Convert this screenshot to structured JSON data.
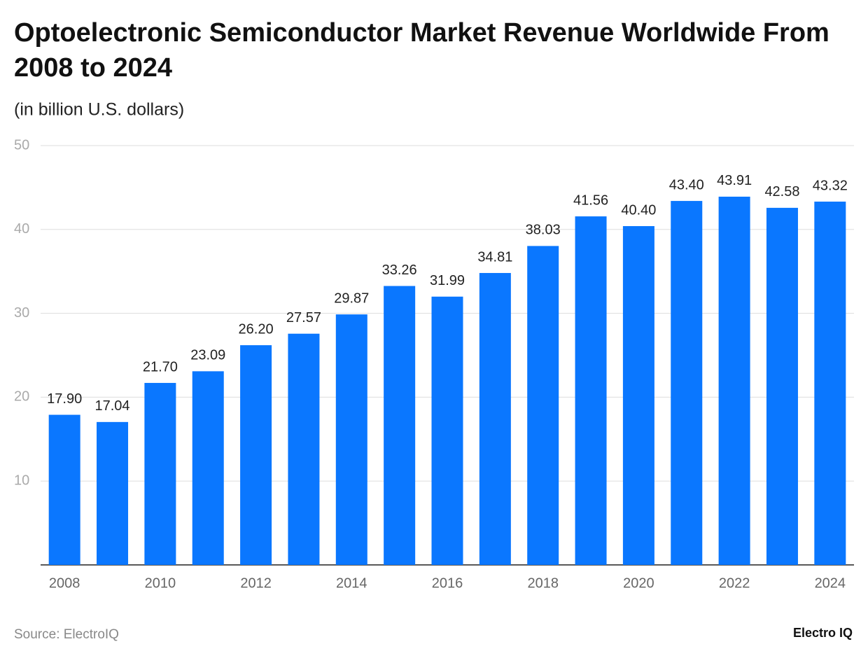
{
  "chart_data": {
    "type": "bar",
    "title": "Optoelectronic Semiconductor Market Revenue Worldwide From 2008 to 2024",
    "subtitle": "(in billion U.S. dollars)",
    "categories": [
      "2008",
      null,
      "2010",
      null,
      "2012",
      null,
      "2014",
      null,
      "2016",
      null,
      "2018",
      null,
      "2020",
      null,
      "2022",
      null,
      "2024"
    ],
    "values": [
      17.9,
      17.04,
      21.7,
      23.09,
      26.2,
      27.57,
      29.87,
      33.26,
      31.99,
      34.81,
      38.03,
      41.56,
      40.4,
      43.4,
      43.91,
      42.58,
      43.32
    ],
    "value_labels": [
      "17.90",
      "17.04",
      "21.70",
      "23.09",
      "26.20",
      "27.57",
      "29.87",
      "33.26",
      "31.99",
      "34.81",
      "38.03",
      "41.56",
      "40.40",
      "43.40",
      "43.91",
      "42.58",
      "43.32"
    ],
    "color": "#0a77ff",
    "ylim": [
      0,
      50
    ],
    "yticks": [
      10,
      20,
      30,
      40,
      50
    ],
    "grid": true,
    "source": "Source: ElectroIQ",
    "brand": "Electro IQ"
  }
}
